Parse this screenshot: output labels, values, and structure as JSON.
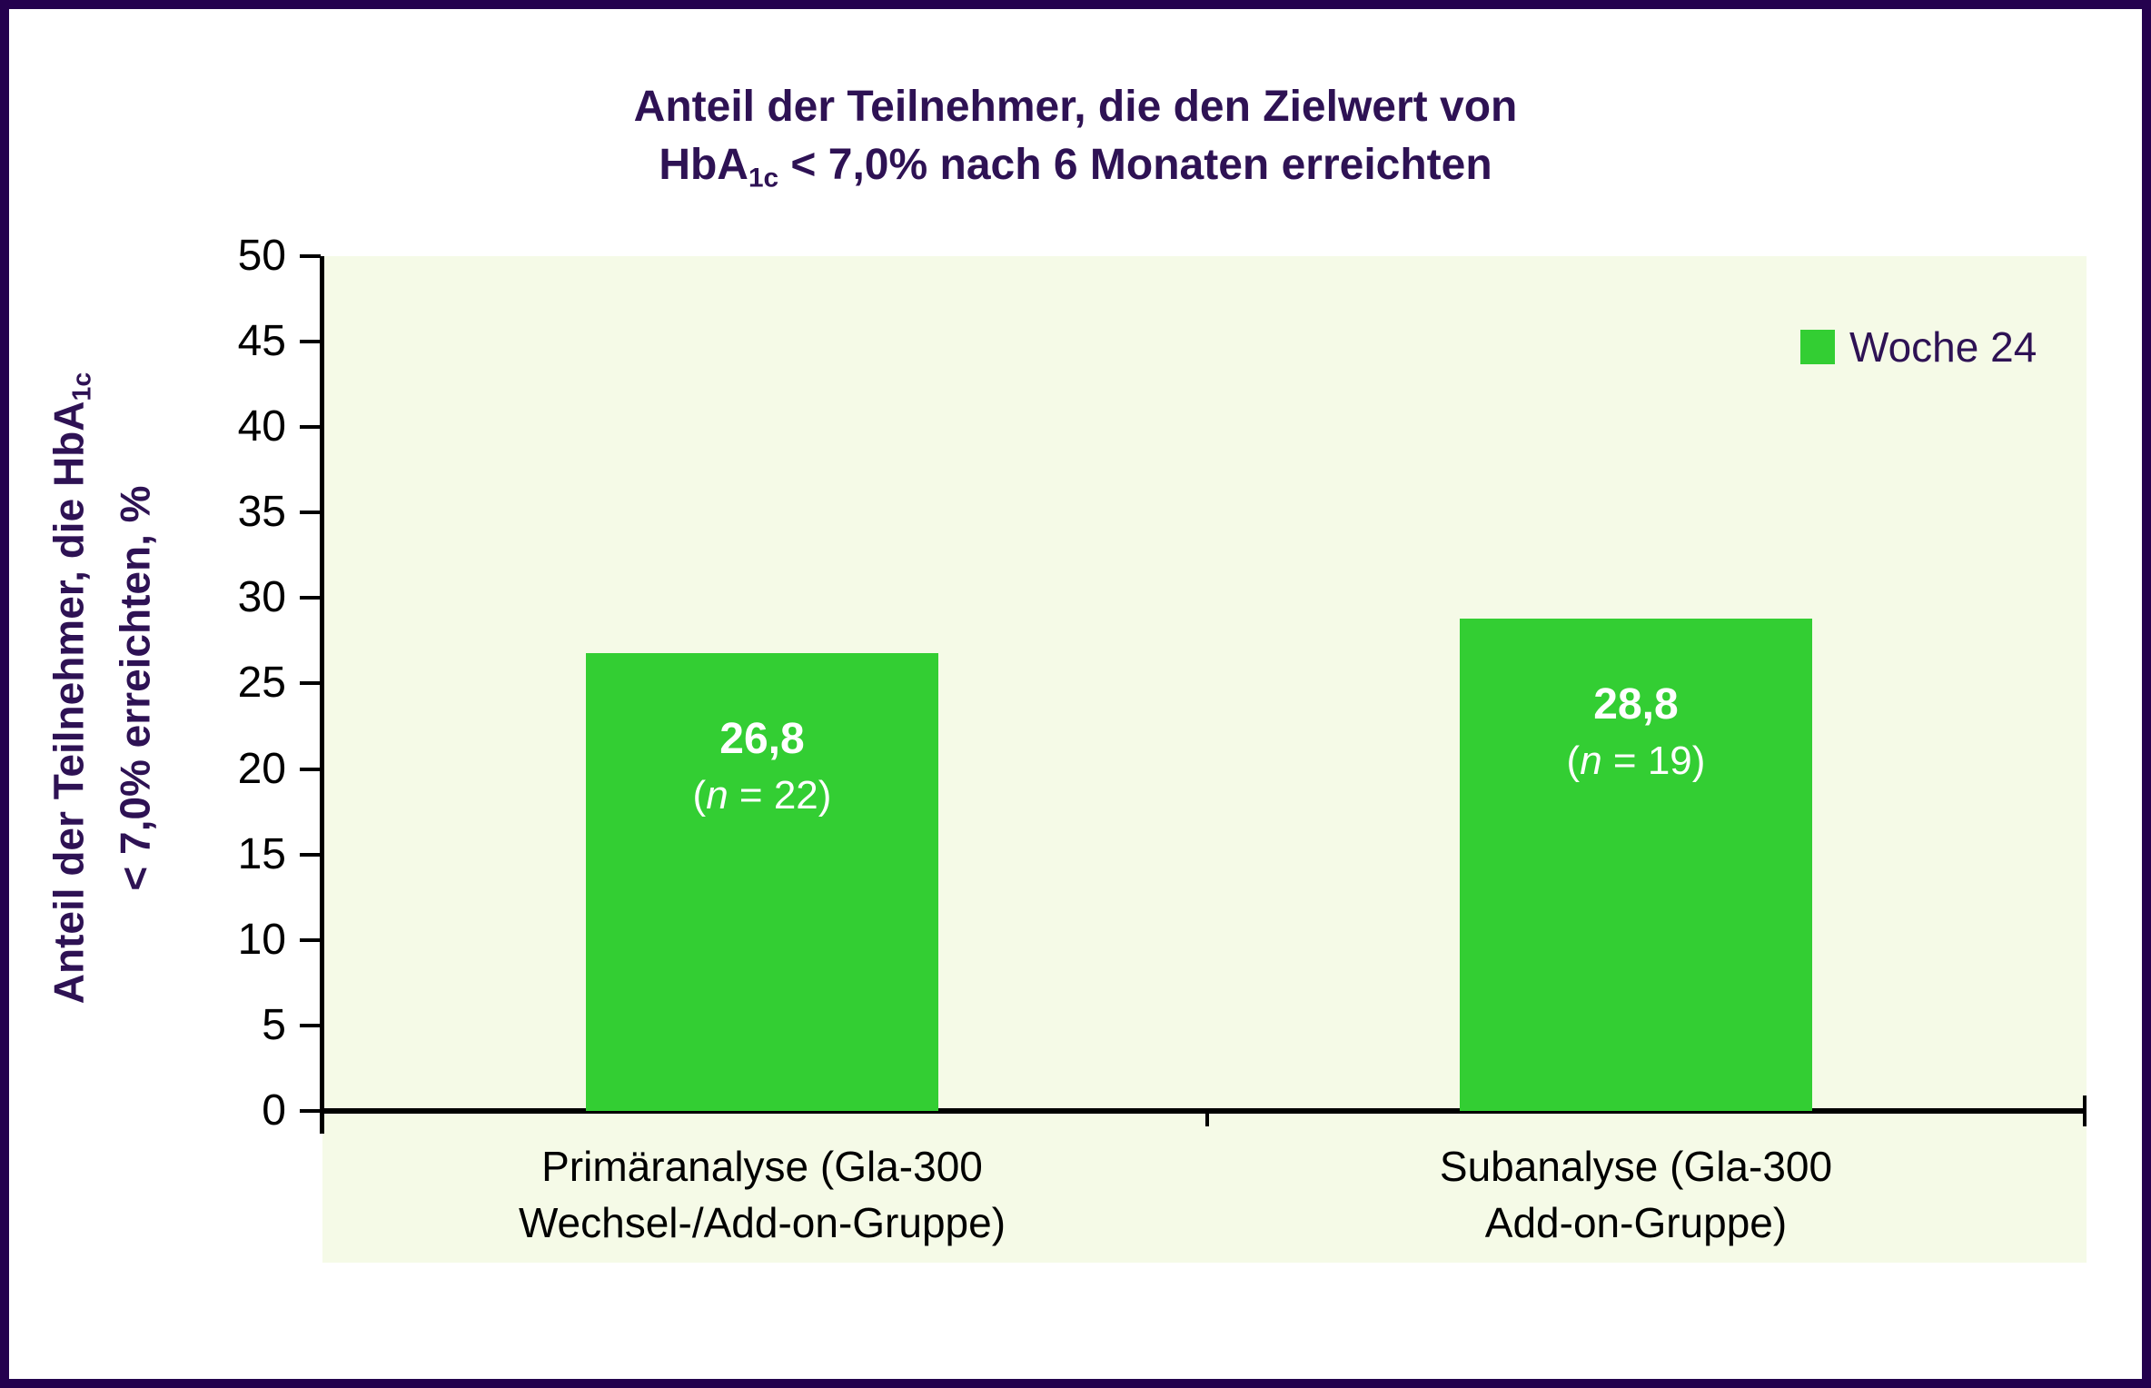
{
  "title": {
    "line1": "Anteil der Teilnehmer, die den Zielwert von",
    "line2_pre": "HbA",
    "line2_sub": "1c",
    "line2_post": " < 7,0% nach 6 Monaten erreichten"
  },
  "y_axis_title": {
    "line1_pre": "Anteil der Teilnehmer, die HbA",
    "line1_sub": "1c",
    "line2": "< 7,0% erreichten, %"
  },
  "legend": {
    "label": "Woche 24"
  },
  "bars": [
    {
      "value_label": "26,8",
      "n_pre": "(",
      "n_italic": "n",
      "n_post": " = 22)",
      "category_line1": "Primäranalyse (Gla-300",
      "category_line2": "Wechsel-/Add-on-Gruppe)"
    },
    {
      "value_label": "28,8",
      "n_pre": "(",
      "n_italic": "n",
      "n_post": " = 19)",
      "category_line1": "Subanalyse (Gla-300",
      "category_line2": "Add-on-Gruppe)"
    }
  ],
  "colors": {
    "accent_purple": "#2E1254",
    "frame_border": "#24014E",
    "bar_green": "#33CE33",
    "plot_background": "#F5FAE7",
    "axis_black": "#000000",
    "bar_label_white": "#FFFFFF"
  },
  "chart_data": {
    "type": "bar",
    "categories": [
      "Primäranalyse (Gla-300 Wechsel-/Add-on-Gruppe)",
      "Subanalyse (Gla-300 Add-on-Gruppe)"
    ],
    "values": [
      26.8,
      28.8
    ],
    "bar_value_labels": [
      "26,8",
      "28,8"
    ],
    "bar_n_labels": [
      "(n = 22)",
      "(n = 19)"
    ],
    "n_values": [
      22,
      19
    ],
    "title": "Anteil der Teilnehmer, die den Zielwert von HbA1c < 7,0% nach 6 Monaten erreichten",
    "xlabel": "",
    "ylabel": "Anteil der Teilnehmer, die HbA1c < 7,0% erreichten, %",
    "ylim": [
      0,
      50
    ],
    "yticks": [
      0,
      5,
      10,
      15,
      20,
      25,
      30,
      35,
      40,
      45,
      50
    ],
    "grid": false,
    "legend": {
      "entries": [
        "Woche 24"
      ],
      "position": "top-right"
    },
    "series_color": "#33CE33"
  }
}
